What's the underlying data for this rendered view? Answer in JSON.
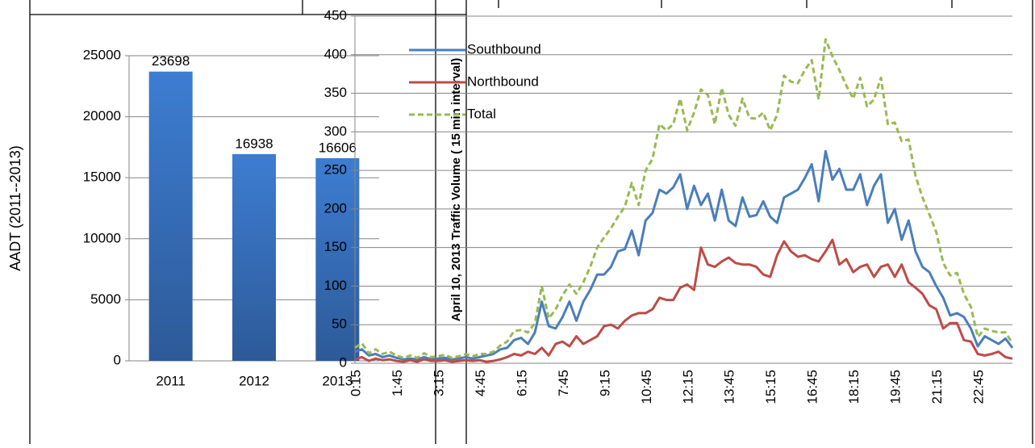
{
  "chart_data": [
    {
      "type": "bar",
      "ylabel": "AADT (2011--2013)",
      "categories": [
        "2011",
        "2012",
        "2013"
      ],
      "values": [
        23698,
        16938,
        16606
      ],
      "color": "#3a72bf",
      "ylim": [
        0,
        25000
      ],
      "yticks": [
        0,
        5000,
        10000,
        15000,
        20000,
        25000
      ],
      "grid": true
    },
    {
      "type": "line",
      "ylabel": "April 10, 2013 Traffic Volume ( 15 min interval)",
      "categories": [
        "0:15",
        null,
        null,
        null,
        null,
        null,
        "1:45",
        null,
        null,
        null,
        null,
        null,
        "3:15",
        null,
        null,
        null,
        null,
        null,
        "4:45",
        null,
        null,
        null,
        null,
        null,
        "6:15",
        null,
        null,
        null,
        null,
        null,
        "7:45",
        null,
        null,
        null,
        null,
        null,
        "9:15",
        null,
        null,
        null,
        null,
        null,
        "10:45",
        null,
        null,
        null,
        null,
        null,
        "12:15",
        null,
        null,
        null,
        null,
        null,
        "13:45",
        null,
        null,
        null,
        null,
        null,
        "15:15",
        null,
        null,
        null,
        null,
        null,
        "16:45",
        null,
        null,
        null,
        null,
        null,
        "18:15",
        null,
        null,
        null,
        null,
        null,
        "19:45",
        null,
        null,
        null,
        null,
        null,
        "21:15",
        null,
        null,
        null,
        null,
        null,
        "22:45",
        null,
        null,
        null,
        null,
        null
      ],
      "series": [
        {
          "name": "Southbound",
          "color": "#4a7ebb",
          "linestyle": "solid",
          "values": [
            15,
            18,
            10,
            12,
            8,
            10,
            7,
            5,
            6,
            5,
            8,
            5,
            6,
            7,
            5,
            6,
            8,
            6,
            8,
            10,
            12,
            18,
            20,
            30,
            33,
            25,
            40,
            80,
            48,
            45,
            60,
            80,
            55,
            80,
            95,
            115,
            115,
            125,
            145,
            148,
            172,
            140,
            185,
            195,
            225,
            220,
            228,
            245,
            200,
            230,
            205,
            220,
            185,
            225,
            185,
            178,
            215,
            190,
            192,
            210,
            190,
            182,
            215,
            220,
            225,
            240,
            258,
            210,
            275,
            238,
            252,
            225,
            225,
            245,
            205,
            230,
            245,
            182,
            200,
            160,
            185,
            145,
            125,
            118,
            100,
            85,
            62,
            65,
            60,
            45,
            22,
            35,
            30,
            25,
            32,
            20
          ]
        },
        {
          "name": "Northbound",
          "color": "#be4b48",
          "linestyle": "solid",
          "values": [
            5,
            8,
            3,
            6,
            4,
            5,
            3,
            2,
            4,
            2,
            5,
            3,
            3,
            4,
            2,
            3,
            4,
            3,
            4,
            2,
            3,
            5,
            8,
            12,
            10,
            15,
            12,
            20,
            10,
            25,
            28,
            22,
            35,
            25,
            30,
            35,
            48,
            50,
            45,
            55,
            62,
            65,
            65,
            70,
            85,
            82,
            82,
            98,
            102,
            95,
            150,
            128,
            125,
            132,
            137,
            130,
            128,
            128,
            125,
            115,
            112,
            140,
            158,
            145,
            138,
            140,
            135,
            132,
            145,
            160,
            128,
            135,
            118,
            125,
            128,
            112,
            125,
            128,
            112,
            128,
            105,
            98,
            90,
            75,
            70,
            45,
            52,
            52,
            30,
            28,
            12,
            10,
            12,
            15,
            8,
            6
          ]
        },
        {
          "name": "Total",
          "color": "#98b954",
          "linestyle": "dashed",
          "values": [
            20,
            26,
            13,
            18,
            12,
            15,
            10,
            7,
            10,
            7,
            13,
            8,
            9,
            11,
            7,
            9,
            12,
            9,
            12,
            12,
            15,
            23,
            28,
            42,
            43,
            40,
            52,
            100,
            58,
            70,
            88,
            102,
            90,
            105,
            125,
            150,
            163,
            175,
            190,
            203,
            234,
            205,
            250,
            265,
            310,
            302,
            310,
            343,
            302,
            325,
            355,
            348,
            310,
            357,
            322,
            308,
            343,
            318,
            317,
            325,
            302,
            322,
            373,
            365,
            363,
            380,
            393,
            342,
            420,
            398,
            380,
            360,
            343,
            370,
            333,
            342,
            370,
            310,
            312,
            288,
            290,
            243,
            215,
            193,
            170,
            130,
            114,
            117,
            90,
            73,
            34,
            45,
            42,
            40,
            40,
            26
          ]
        }
      ],
      "ylim": [
        0,
        450
      ],
      "yticks": [
        0,
        50,
        100,
        150,
        200,
        250,
        300,
        350,
        400,
        450
      ],
      "grid": true,
      "legend": "upper left"
    }
  ]
}
